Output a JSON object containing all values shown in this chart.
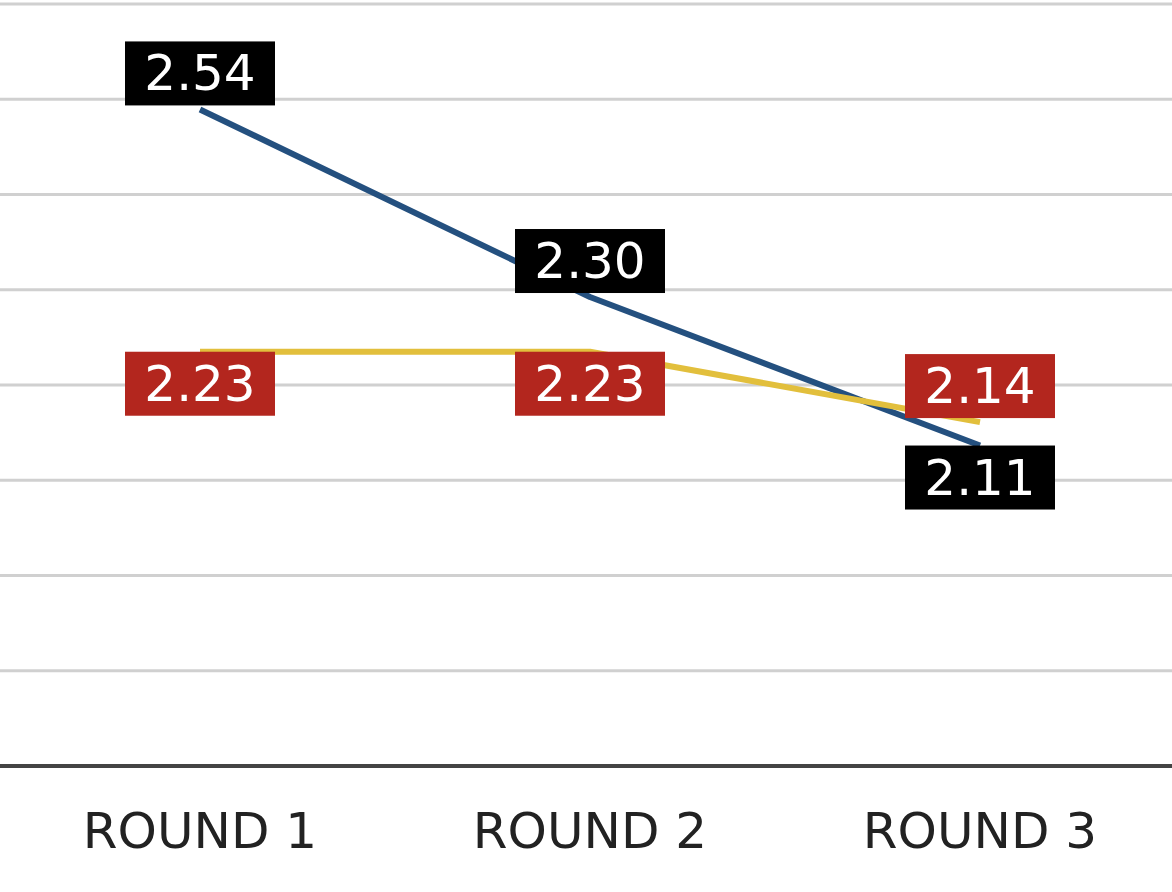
{
  "chart_data": {
    "type": "line",
    "categories": [
      "ROUND 1",
      "ROUND 2",
      "ROUND 3"
    ],
    "series": [
      {
        "color": "#24507f",
        "values": [
          2.54,
          2.3,
          2.11
        ],
        "value_labels": [
          "2.54",
          "2.30",
          "2.11"
        ]
      },
      {
        "color": "#e2bf3c",
        "values": [
          2.23,
          2.23,
          2.14
        ],
        "value_labels": [
          "2.23",
          "2.23",
          "2.14"
        ]
      }
    ],
    "ylim": [
      1.7,
      2.68
    ],
    "tick_labels": "x",
    "grid": "y",
    "legend": false,
    "marker": "none",
    "line_style": "solid"
  }
}
